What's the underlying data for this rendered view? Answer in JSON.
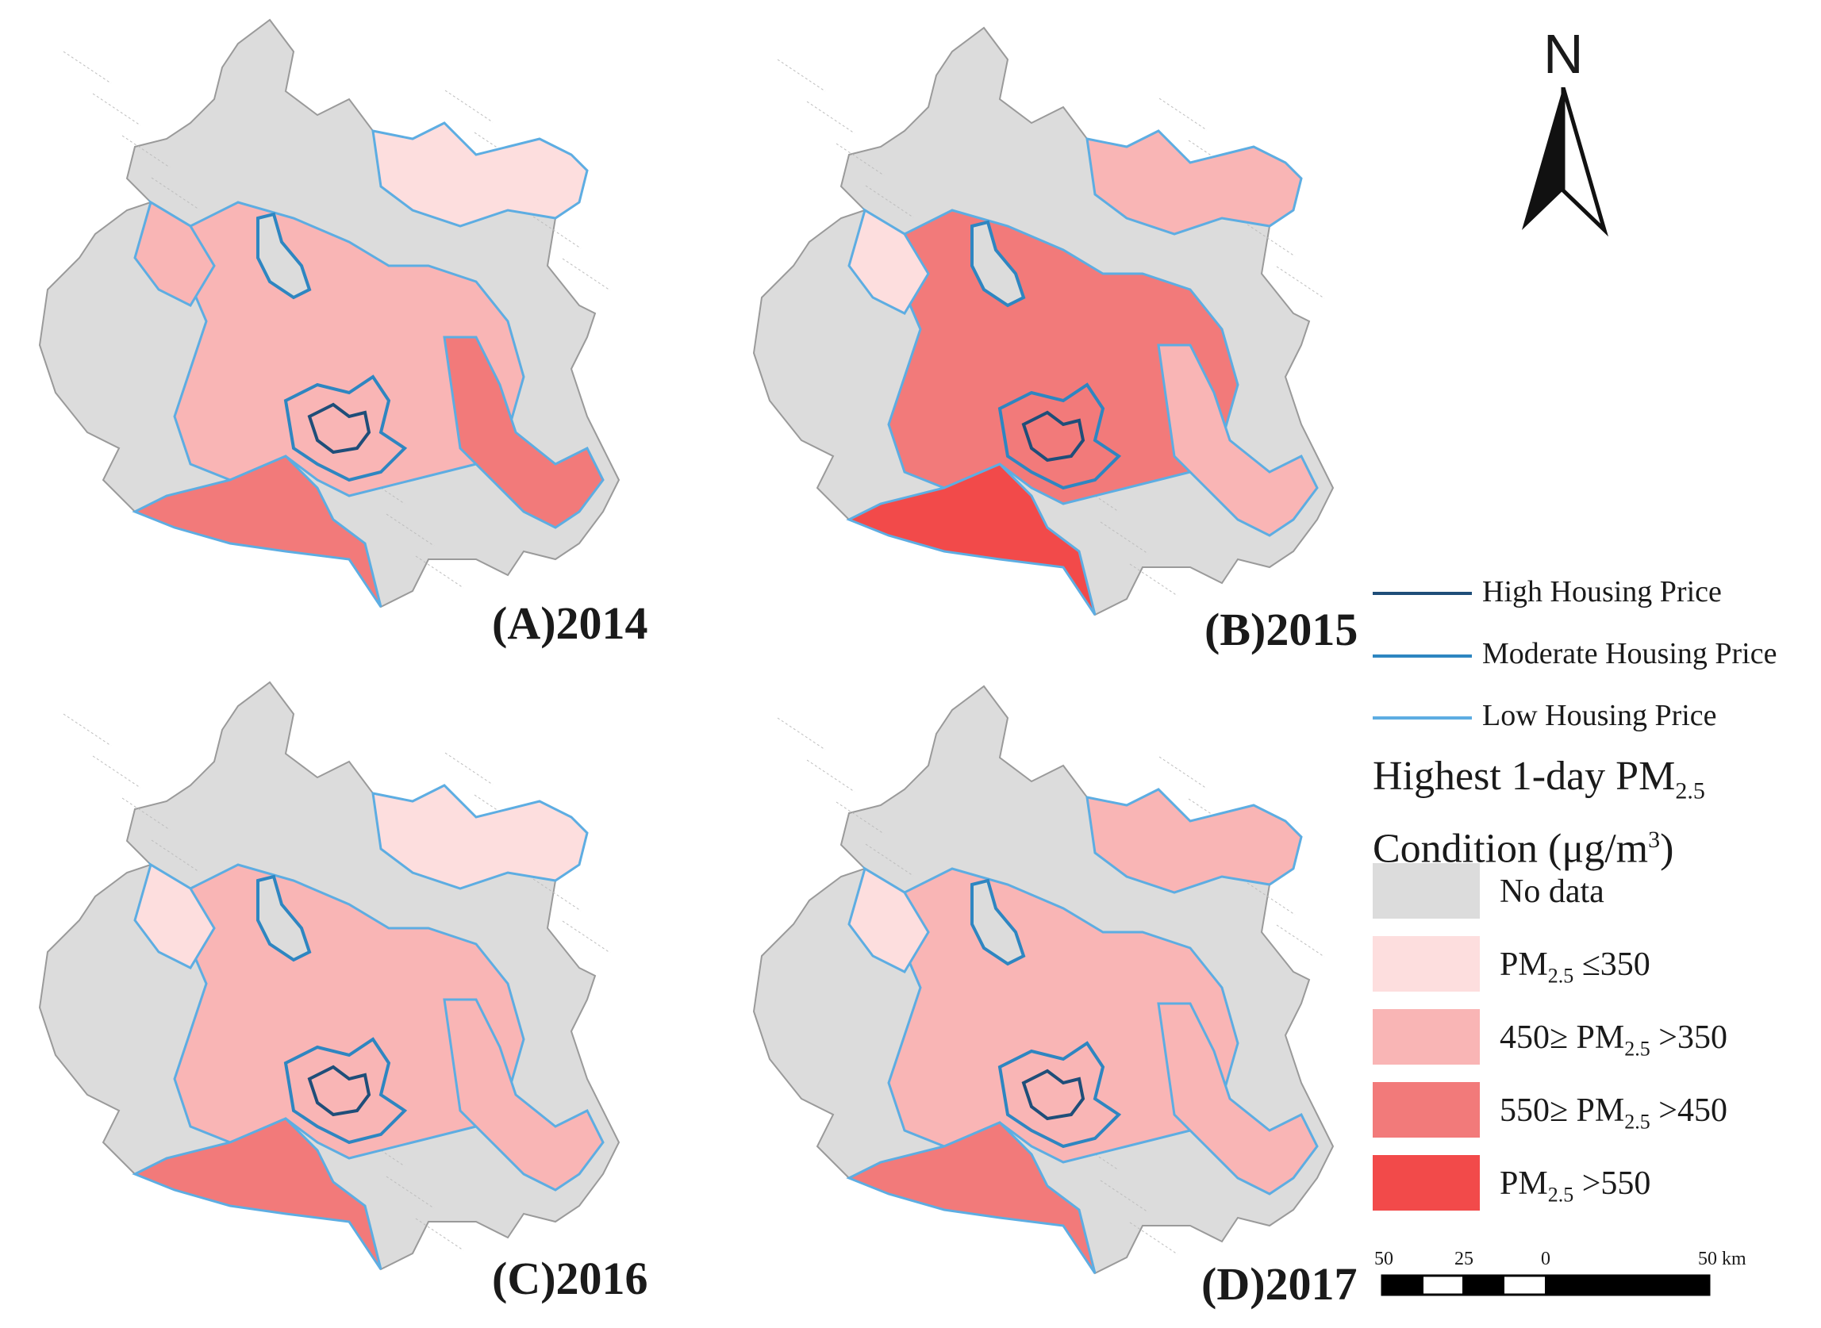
{
  "panels": [
    {
      "label": "(A)2014"
    },
    {
      "label": "(B)2015"
    },
    {
      "label": "(C)2016"
    },
    {
      "label": "(D)2017"
    }
  ],
  "legend": {
    "lines": [
      {
        "label": "High Housing Price",
        "color": "#1f4e79"
      },
      {
        "label": "Moderate Housing Price",
        "color": "#2e86c1"
      },
      {
        "label": "Low Housing Price",
        "color": "#5dade2"
      }
    ],
    "title_line1": "Highest 1-day PM",
    "title_sub": "2.5",
    "title_line2": "Condition (μg/m",
    "title_sup": "3",
    "title_close": ")",
    "classes": [
      {
        "label": "No data",
        "color": "#dcdcdc"
      },
      {
        "pre": "PM",
        "sub": "2.5",
        "post": " ≤350",
        "color": "#fddede"
      },
      {
        "pre": "450≥ PM",
        "sub": "2.5",
        "post": " >350",
        "color": "#f9b5b5"
      },
      {
        "pre": "550≥ PM",
        "sub": "2.5",
        "post": " >450",
        "color": "#f27a7a"
      },
      {
        "pre": "PM",
        "sub": "2.5",
        "post": " >550",
        "color": "#f24a4a"
      }
    ]
  },
  "north": {
    "letter": "N"
  },
  "scale": {
    "ticks": [
      "50",
      "25",
      "0",
      "50 km"
    ]
  }
}
